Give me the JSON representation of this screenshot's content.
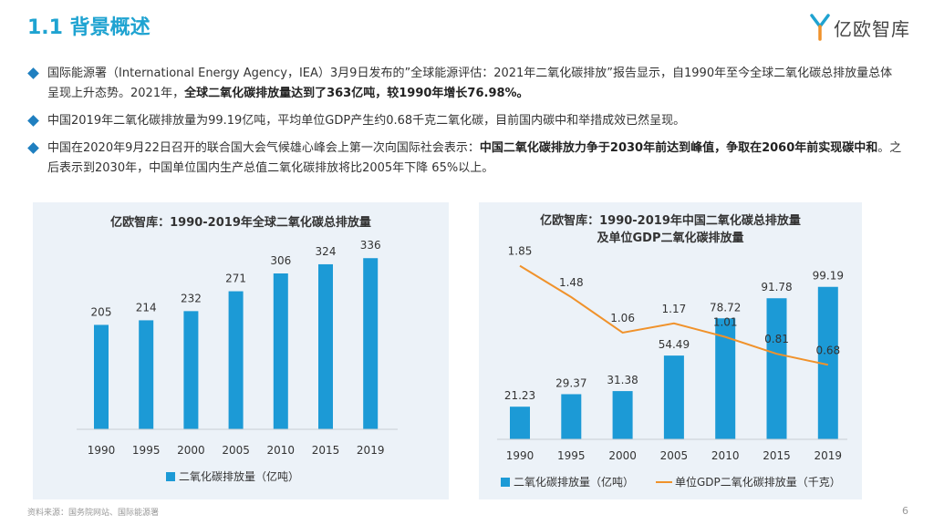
{
  "header": {
    "title": "1.1 背景概述",
    "logo_text": "亿欧智库"
  },
  "bullets": [
    {
      "parts": [
        {
          "t": "国际能源署（International Energy Agency，IEA）3月9日发布的”全球能源评估：2021年二氧化碳排放”报告显示，自1990年至今全球二氧化碳总排放量总体呈现上升态势。2021年，",
          "b": false
        },
        {
          "t": "全球二氧化碳排放量达到了363亿吨，较1990年增长76.98%。",
          "b": true
        }
      ]
    },
    {
      "parts": [
        {
          "t": "中国2019年二氧化碳排放量为99.19亿吨，平均单位GDP产生约0.68千克二氧化碳，目前国内碳中和举措成效已然呈现。",
          "b": false
        }
      ]
    },
    {
      "parts": [
        {
          "t": "中国在2020年9月22日召开的联合国大会气候雄心峰会上第一次向国际社会表示：",
          "b": false
        },
        {
          "t": "中国二氧化碳排放力争于2030年前达到峰值，争取在2060年前实现碳中和",
          "b": true
        },
        {
          "t": "。之后表示到2030年，中国单位国内生产总值二氧化碳排放将比2005年下降 65%以上。",
          "b": false
        }
      ]
    }
  ],
  "chart_data": [
    {
      "type": "bar",
      "title": "亿欧智库：1990-2019年全球二氧化碳总排放量",
      "categories": [
        "1990",
        "1995",
        "2000",
        "2005",
        "2010",
        "2015",
        "2019"
      ],
      "series": [
        {
          "name": "二氧化碳排放量（亿吨）",
          "values": [
            205,
            214,
            232,
            271,
            306,
            324,
            336
          ]
        }
      ],
      "ylim": [
        0,
        340
      ],
      "grid": false,
      "legend": "bottom",
      "color": "#1c9ad6"
    },
    {
      "type": "bar+line",
      "title_lines": [
        "亿欧智库：1990-2019年中国二氧化碳总排放量",
        "及单位GDP二氧化碳排放量"
      ],
      "categories": [
        "1990",
        "1995",
        "2000",
        "2005",
        "2010",
        "2015",
        "2019"
      ],
      "series": [
        {
          "name": "二氧化碳排放量（亿吨）",
          "type": "bar",
          "values": [
            21.23,
            29.37,
            31.38,
            54.49,
            78.72,
            91.78,
            99.19
          ],
          "color": "#1c9ad6"
        },
        {
          "name": "单位GDP二氧化碳排放量（千克）",
          "type": "line",
          "values": [
            1.85,
            1.48,
            1.06,
            1.17,
            1.01,
            0.81,
            0.68
          ],
          "color": "#f0922b"
        }
      ],
      "ylim": [
        0,
        102
      ],
      "y2lim": [
        0.5,
        1.9
      ],
      "grid": false,
      "legend": "bottom"
    }
  ],
  "footer": {
    "source": "资料来源：国务院网站、国际能源署",
    "page": "6"
  }
}
